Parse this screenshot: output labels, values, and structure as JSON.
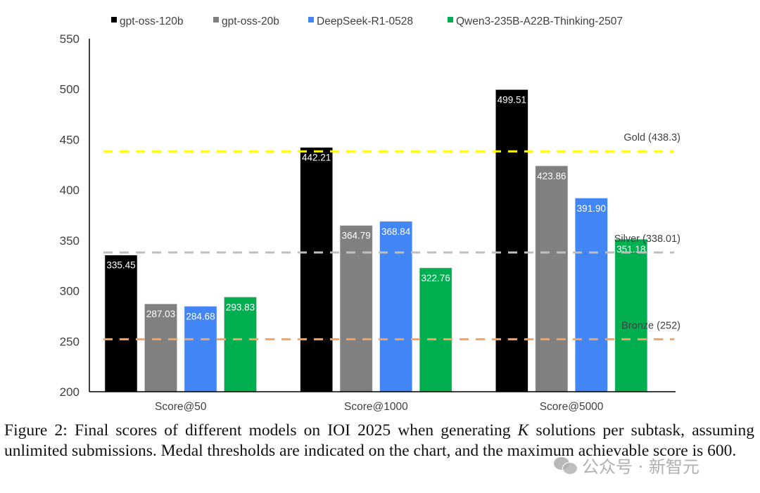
{
  "chart_data": {
    "type": "bar",
    "title": "",
    "xlabel": "",
    "ylabel": "",
    "ylim": [
      200,
      550
    ],
    "yticks": [
      200,
      250,
      300,
      350,
      400,
      450,
      500,
      550
    ],
    "grid": false,
    "legend_position": "top",
    "categories": [
      "Score@50",
      "Score@1000",
      "Score@5000"
    ],
    "series": [
      {
        "name": "gpt-oss-120b",
        "color": "#000000",
        "values": [
          335.45,
          442.21,
          499.51
        ],
        "labels": [
          "335.45",
          "442.21",
          "499.51"
        ]
      },
      {
        "name": "gpt-oss-20b",
        "color": "#808080",
        "values": [
          287.03,
          364.79,
          423.86
        ],
        "labels": [
          "287.03",
          "364.79",
          "423.86"
        ]
      },
      {
        "name": "DeepSeek-R1-0528",
        "color": "#4285f4",
        "values": [
          284.68,
          368.84,
          391.9
        ],
        "labels": [
          "284.68",
          "368.84",
          "391.90"
        ]
      },
      {
        "name": "Qwen3-235B-A22B-Thinking-2507",
        "color": "#00b050",
        "values": [
          293.83,
          322.76,
          351.18
        ],
        "labels": [
          "293.83",
          "322.76",
          "351.18"
        ]
      }
    ],
    "reference_lines": [
      {
        "name": "Gold",
        "label": "Gold (438.3)",
        "value": 438.3,
        "color": "#ffff00"
      },
      {
        "name": "Silver",
        "label": "Silver (338.01)",
        "value": 338.01,
        "color": "#bfbfbf"
      },
      {
        "name": "Bronze",
        "label": "Bronze (252)",
        "value": 252,
        "color": "#f4a460"
      }
    ]
  },
  "caption": {
    "prefix": "Figure 2: Final scores of different models on IOI 2025 when generating ",
    "variable": "K",
    "suffix": " solutions per subtask, assuming unlimited submissions.  Medal thresholds are indicated on the chart, and the maximum achievable score is 600."
  },
  "watermark": {
    "icon": "wechat-icon",
    "text": "公众号 · 新智元"
  }
}
